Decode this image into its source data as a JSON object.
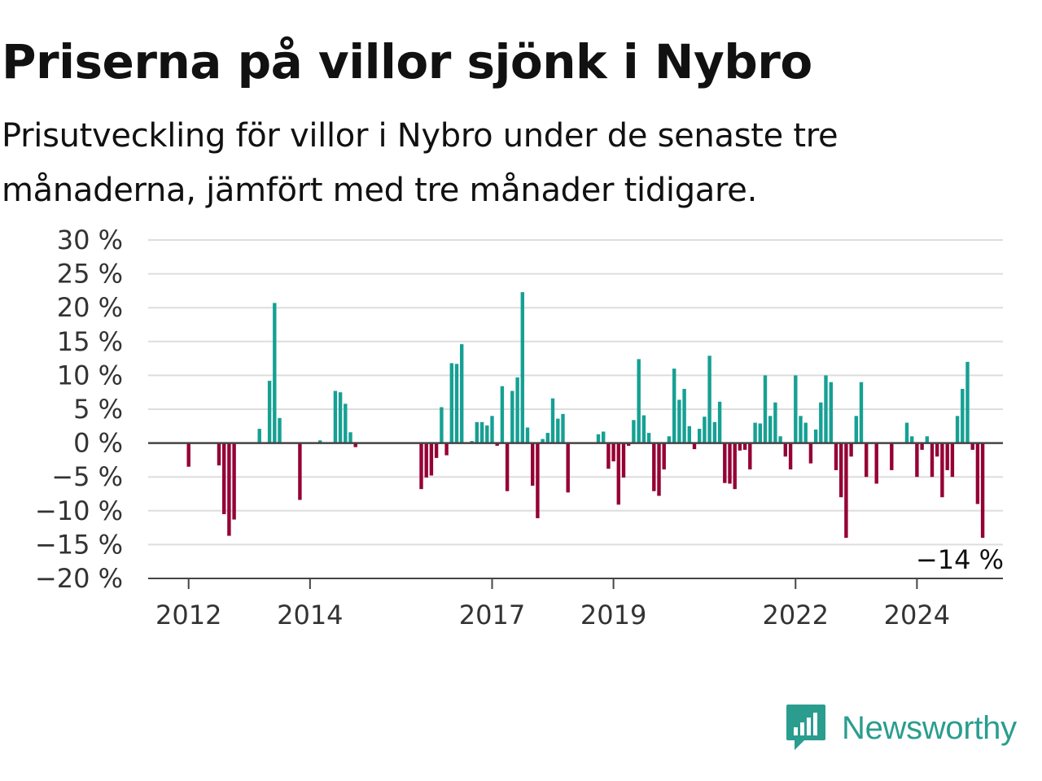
{
  "title": "Priserna på villor sjönk i Nybro",
  "subtitle": "Prisutveckling för villor i Nybro under de senaste tre månaderna, jämfört med tre månader tidigare.",
  "brand": {
    "name": "Newsworthy",
    "icon": "newsworthy-logo-icon",
    "color": "#2a9d8f"
  },
  "colors": {
    "positive": "#16a094",
    "negative": "#950035",
    "grid": "#dddddd",
    "axis": "#444444"
  },
  "chart_data": {
    "type": "bar",
    "title": "Priserna på villor sjönk i Nybro",
    "subtitle": "Prisutveckling för villor i Nybro under de senaste tre månaderna, jämfört med tre månader tidigare.",
    "xlabel": "",
    "ylabel": "",
    "ylim": [
      -20,
      30
    ],
    "y_ticks": [
      30,
      25,
      20,
      15,
      10,
      5,
      0,
      -5,
      -10,
      -15,
      -20
    ],
    "y_tick_labels": [
      "30 %",
      "25 %",
      "20 %",
      "15 %",
      "10 %",
      "5 %",
      "0 %",
      "−5 %",
      "−10 %",
      "−15 %",
      "−20 %"
    ],
    "x_range": [
      "2011-05",
      "2025-06"
    ],
    "x_ticks": [
      {
        "label": "2012",
        "date": "2012-01"
      },
      {
        "label": "2014",
        "date": "2014-01"
      },
      {
        "label": "2017",
        "date": "2017-01"
      },
      {
        "label": "2019",
        "date": "2019-01"
      },
      {
        "label": "2022",
        "date": "2022-01"
      },
      {
        "label": "2024",
        "date": "2024-01"
      }
    ],
    "grid": true,
    "end_label": "−14 %",
    "series": [
      {
        "values": [
          {
            "x": "2012-01",
            "y": -3.5
          },
          {
            "x": "2012-07",
            "y": -3.3
          },
          {
            "x": "2012-08",
            "y": -10.5
          },
          {
            "x": "2012-09",
            "y": -13.7
          },
          {
            "x": "2012-10",
            "y": -11.3
          },
          {
            "x": "2013-03",
            "y": 2.1
          },
          {
            "x": "2013-05",
            "y": 9.2
          },
          {
            "x": "2013-06",
            "y": 20.7
          },
          {
            "x": "2013-07",
            "y": 3.7
          },
          {
            "x": "2013-11",
            "y": -8.4
          },
          {
            "x": "2014-03",
            "y": 0.4
          },
          {
            "x": "2014-06",
            "y": 7.7
          },
          {
            "x": "2014-07",
            "y": 7.5
          },
          {
            "x": "2014-08",
            "y": 5.8
          },
          {
            "x": "2014-09",
            "y": 1.6
          },
          {
            "x": "2014-10",
            "y": -0.6
          },
          {
            "x": "2015-11",
            "y": -6.8
          },
          {
            "x": "2015-12",
            "y": -5.1
          },
          {
            "x": "2016-01",
            "y": -4.8
          },
          {
            "x": "2016-02",
            "y": -2.2
          },
          {
            "x": "2016-03",
            "y": 5.3
          },
          {
            "x": "2016-04",
            "y": -1.8
          },
          {
            "x": "2016-05",
            "y": 11.8
          },
          {
            "x": "2016-06",
            "y": 11.7
          },
          {
            "x": "2016-07",
            "y": 14.6
          },
          {
            "x": "2016-09",
            "y": 0.3
          },
          {
            "x": "2016-10",
            "y": 3.1
          },
          {
            "x": "2016-11",
            "y": 3.1
          },
          {
            "x": "2016-12",
            "y": 2.6
          },
          {
            "x": "2017-01",
            "y": 4.0
          },
          {
            "x": "2017-02",
            "y": -0.4
          },
          {
            "x": "2017-03",
            "y": 8.4
          },
          {
            "x": "2017-04",
            "y": -7.1
          },
          {
            "x": "2017-05",
            "y": 7.7
          },
          {
            "x": "2017-06",
            "y": 9.7
          },
          {
            "x": "2017-07",
            "y": 22.3
          },
          {
            "x": "2017-08",
            "y": 2.3
          },
          {
            "x": "2017-09",
            "y": -6.3
          },
          {
            "x": "2017-10",
            "y": -11.1
          },
          {
            "x": "2017-11",
            "y": 0.6
          },
          {
            "x": "2017-12",
            "y": 1.5
          },
          {
            "x": "2018-01",
            "y": 6.6
          },
          {
            "x": "2018-02",
            "y": 3.6
          },
          {
            "x": "2018-03",
            "y": 4.3
          },
          {
            "x": "2018-04",
            "y": -7.3
          },
          {
            "x": "2018-10",
            "y": 1.3
          },
          {
            "x": "2018-11",
            "y": 1.7
          },
          {
            "x": "2018-12",
            "y": -3.8
          },
          {
            "x": "2019-01",
            "y": -2.7
          },
          {
            "x": "2019-02",
            "y": -9.1
          },
          {
            "x": "2019-03",
            "y": -5.1
          },
          {
            "x": "2019-04",
            "y": -0.4
          },
          {
            "x": "2019-05",
            "y": 3.4
          },
          {
            "x": "2019-06",
            "y": 12.4
          },
          {
            "x": "2019-07",
            "y": 4.1
          },
          {
            "x": "2019-08",
            "y": 1.5
          },
          {
            "x": "2019-09",
            "y": -7.1
          },
          {
            "x": "2019-10",
            "y": -7.8
          },
          {
            "x": "2019-11",
            "y": -3.9
          },
          {
            "x": "2019-12",
            "y": 1.0
          },
          {
            "x": "2020-01",
            "y": 11.0
          },
          {
            "x": "2020-02",
            "y": 6.4
          },
          {
            "x": "2020-03",
            "y": 8.0
          },
          {
            "x": "2020-04",
            "y": 2.5
          },
          {
            "x": "2020-05",
            "y": -0.9
          },
          {
            "x": "2020-06",
            "y": 2.1
          },
          {
            "x": "2020-07",
            "y": 3.9
          },
          {
            "x": "2020-08",
            "y": 12.9
          },
          {
            "x": "2020-09",
            "y": 3.1
          },
          {
            "x": "2020-10",
            "y": 6.1
          },
          {
            "x": "2020-11",
            "y": -5.9
          },
          {
            "x": "2020-12",
            "y": -6.0
          },
          {
            "x": "2021-01",
            "y": -6.8
          },
          {
            "x": "2021-02",
            "y": -1.1
          },
          {
            "x": "2021-03",
            "y": -1.0
          },
          {
            "x": "2021-04",
            "y": -3.9
          },
          {
            "x": "2021-05",
            "y": 3.0
          },
          {
            "x": "2021-06",
            "y": 2.9
          },
          {
            "x": "2021-07",
            "y": 10.0
          },
          {
            "x": "2021-08",
            "y": 4.0
          },
          {
            "x": "2021-09",
            "y": 6.0
          },
          {
            "x": "2021-10",
            "y": 1.0
          },
          {
            "x": "2021-11",
            "y": -2.0
          },
          {
            "x": "2021-12",
            "y": -3.9
          },
          {
            "x": "2022-01",
            "y": 10.0
          },
          {
            "x": "2022-02",
            "y": 4.0
          },
          {
            "x": "2022-03",
            "y": 3.0
          },
          {
            "x": "2022-04",
            "y": -3.0
          },
          {
            "x": "2022-05",
            "y": 2.0
          },
          {
            "x": "2022-06",
            "y": 6.0
          },
          {
            "x": "2022-07",
            "y": 10.0
          },
          {
            "x": "2022-08",
            "y": 9.0
          },
          {
            "x": "2022-09",
            "y": -4.0
          },
          {
            "x": "2022-10",
            "y": -8.0
          },
          {
            "x": "2022-11",
            "y": -14.0
          },
          {
            "x": "2022-12",
            "y": -2.0
          },
          {
            "x": "2023-01",
            "y": 4.0
          },
          {
            "x": "2023-02",
            "y": 9.0
          },
          {
            "x": "2023-03",
            "y": -5.0
          },
          {
            "x": "2023-05",
            "y": -6.0
          },
          {
            "x": "2023-08",
            "y": -4.0
          },
          {
            "x": "2023-11",
            "y": 3.0
          },
          {
            "x": "2023-12",
            "y": 1.0
          },
          {
            "x": "2024-01",
            "y": -5.0
          },
          {
            "x": "2024-02",
            "y": -1.0
          },
          {
            "x": "2024-03",
            "y": 1.0
          },
          {
            "x": "2024-04",
            "y": -5.0
          },
          {
            "x": "2024-05",
            "y": -2.0
          },
          {
            "x": "2024-06",
            "y": -8.0
          },
          {
            "x": "2024-07",
            "y": -4.0
          },
          {
            "x": "2024-08",
            "y": -5.0
          },
          {
            "x": "2024-09",
            "y": 4.0
          },
          {
            "x": "2024-10",
            "y": 8.0
          },
          {
            "x": "2024-11",
            "y": 12.0
          },
          {
            "x": "2024-12",
            "y": -1.0
          },
          {
            "x": "2025-01",
            "y": -9.0
          },
          {
            "x": "2025-02",
            "y": -14.0
          }
        ]
      }
    ]
  }
}
